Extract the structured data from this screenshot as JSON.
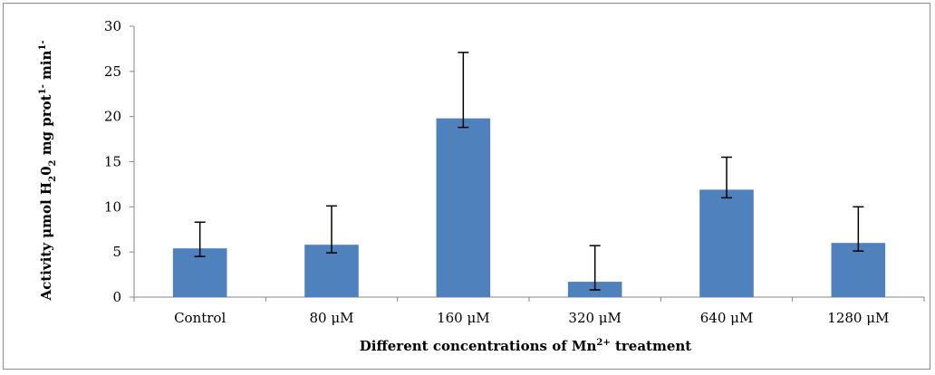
{
  "chart_data": {
    "type": "bar",
    "categories": [
      "Control",
      "80 μM",
      "160 μM",
      "320 μM",
      "640 μM",
      "1280 μM"
    ],
    "values": [
      5.4,
      5.8,
      19.8,
      1.7,
      11.9,
      6.0
    ],
    "error_upper": [
      8.3,
      10.1,
      27.1,
      5.7,
      15.5,
      10.0
    ],
    "error_lower": [
      4.5,
      4.9,
      18.8,
      0.8,
      11.0,
      5.1
    ],
    "ylim": [
      0,
      30
    ],
    "yticks": [
      "0",
      "5",
      "10",
      "15",
      "20",
      "25",
      "30"
    ],
    "ytick_values": [
      0,
      5,
      10,
      15,
      20,
      25,
      30
    ],
    "xlabel": {
      "prefix": "Different concentrations of Mn",
      "superscript": "2+",
      "suffix": " treatment"
    },
    "ylabel": {
      "part1": "Activity μmol H",
      "sub1": "2",
      "part2": "0",
      "sub2": "2",
      "part3": " mg prot",
      "sup1": "1-",
      "part4": " min",
      "sup2": "1-"
    },
    "bar_color": "#4f81bd",
    "grid": false,
    "legend": "none"
  }
}
